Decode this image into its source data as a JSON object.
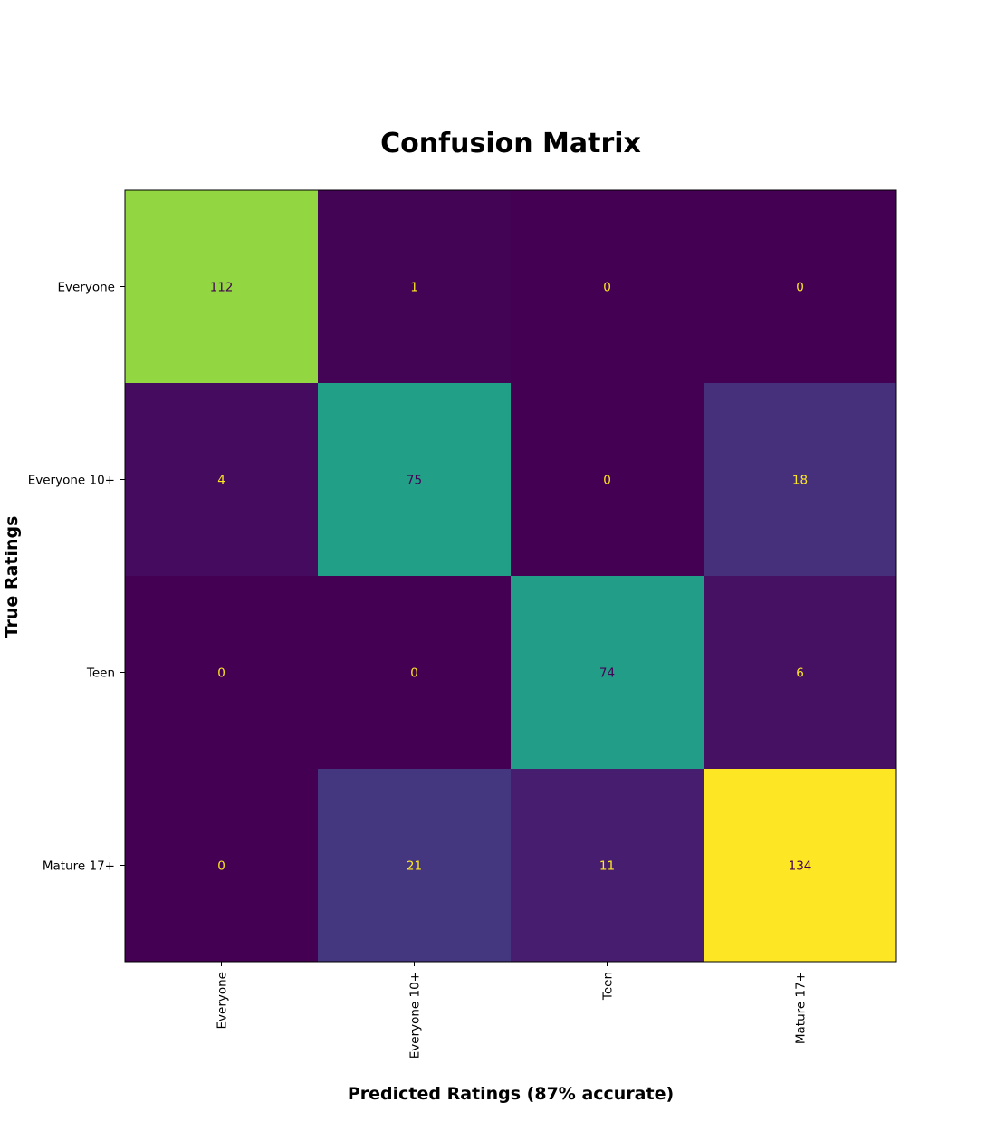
{
  "chart_data": {
    "type": "heatmap",
    "title": "Confusion Matrix",
    "xlabel": "Predicted Ratings (87% accurate)",
    "ylabel": "True Ratings",
    "x_categories": [
      "Everyone",
      "Everyone 10+",
      "Teen",
      "Mature 17+"
    ],
    "y_categories": [
      "Everyone",
      "Everyone 10+",
      "Teen",
      "Mature 17+"
    ],
    "values": [
      [
        112,
        1,
        0,
        0
      ],
      [
        4,
        75,
        0,
        18
      ],
      [
        0,
        0,
        74,
        6
      ],
      [
        0,
        21,
        11,
        134
      ]
    ],
    "value_range": [
      0,
      134
    ],
    "colormap": "viridis",
    "colorbar": false,
    "grid": false,
    "colors": {
      "low": "#440154",
      "high": "#fde725",
      "label_on_dark": "#fde725",
      "label_on_light": "#440154"
    }
  }
}
